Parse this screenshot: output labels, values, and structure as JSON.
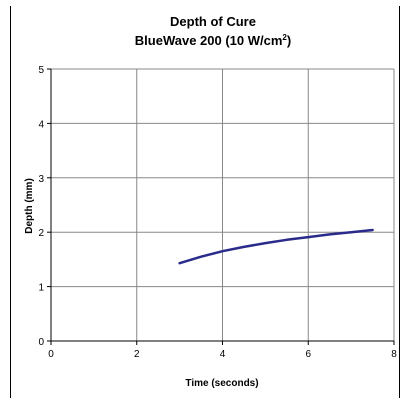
{
  "chart_data": {
    "type": "line",
    "title": "Depth of Cure",
    "subtitle_main": "BlueWave 200 (10 W/cm",
    "subtitle_sup": "2",
    "subtitle_end": ")",
    "xlabel": "Time (seconds)",
    "ylabel": "Depth (mm)",
    "xlim": [
      0,
      8
    ],
    "ylim": [
      0,
      5
    ],
    "xticks": [
      0,
      2,
      4,
      6,
      8
    ],
    "yticks": [
      0,
      1,
      2,
      3,
      4,
      5
    ],
    "grid": true,
    "legend": "none",
    "series": [
      {
        "color": "#2b2b8c",
        "x": [
          3,
          3.5,
          4,
          4.5,
          5,
          5.5,
          6,
          6.5,
          7,
          7.5
        ],
        "y": [
          1.43,
          1.55,
          1.65,
          1.73,
          1.8,
          1.86,
          1.91,
          1.96,
          2.0,
          2.04
        ]
      }
    ]
  }
}
